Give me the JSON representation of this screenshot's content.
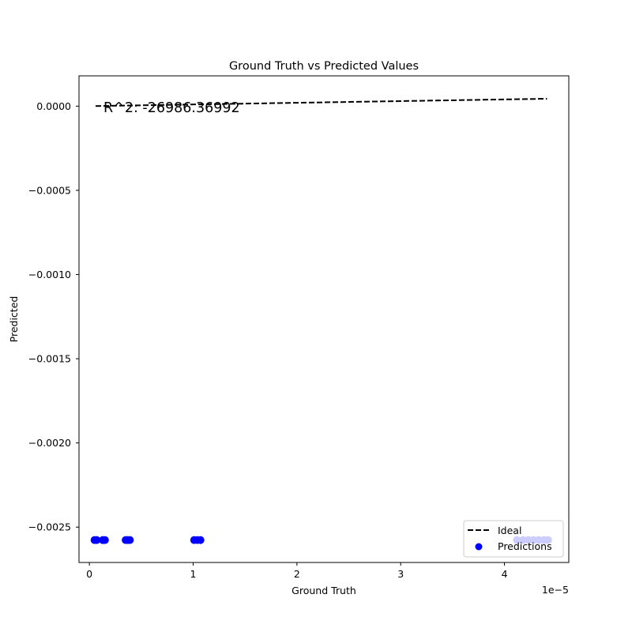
{
  "chart_data": {
    "type": "scatter",
    "title": "Ground Truth vs Predicted Values",
    "xlabel": "Ground Truth",
    "ylabel": "Predicted",
    "x_offset_text": "1e−5",
    "x_scale_multiplier": 1e-05,
    "xlim": [
      -1e-06,
      4.62e-05
    ],
    "ylim": [
      -0.00271,
      0.00018
    ],
    "xticks": [
      0,
      1e-05,
      2e-05,
      3e-05,
      4e-05
    ],
    "xtick_labels": [
      "0",
      "1",
      "2",
      "3",
      "4"
    ],
    "yticks": [
      0,
      -0.0005,
      -0.001,
      -0.0015,
      -0.002,
      -0.0025
    ],
    "ytick_labels": [
      "0.0000",
      "−0.0005",
      "−0.0010",
      "−0.0015",
      "−0.0020",
      "−0.0025"
    ],
    "grid": false,
    "legend_position": "lower-right",
    "annotation": {
      "text": "R^2: -26986.36992"
    },
    "series": [
      {
        "name": "Ideal",
        "kind": "line",
        "style": "dashed",
        "color": "#000000",
        "x": [
          6e-07,
          4.41e-05
        ],
        "y": [
          6e-07,
          4.41e-05
        ]
      },
      {
        "name": "Predictions",
        "kind": "scatter",
        "color": "#0000ff",
        "x": [
          5e-07,
          7e-07,
          1.3e-06,
          1.5e-06,
          3.5e-06,
          3.7e-06,
          3.9e-06,
          1.01e-05,
          1.04e-05,
          1.07e-05,
          4.12e-05,
          4.18e-05,
          4.23e-05,
          4.28e-05,
          4.33e-05,
          4.38e-05,
          4.42e-05
        ],
        "y": [
          -0.002577,
          -0.002577,
          -0.002577,
          -0.002577,
          -0.002577,
          -0.002577,
          -0.002577,
          -0.002577,
          -0.002577,
          -0.002577,
          -0.002577,
          -0.002577,
          -0.002577,
          -0.002577,
          -0.002577,
          -0.002577,
          -0.002577
        ]
      }
    ]
  }
}
